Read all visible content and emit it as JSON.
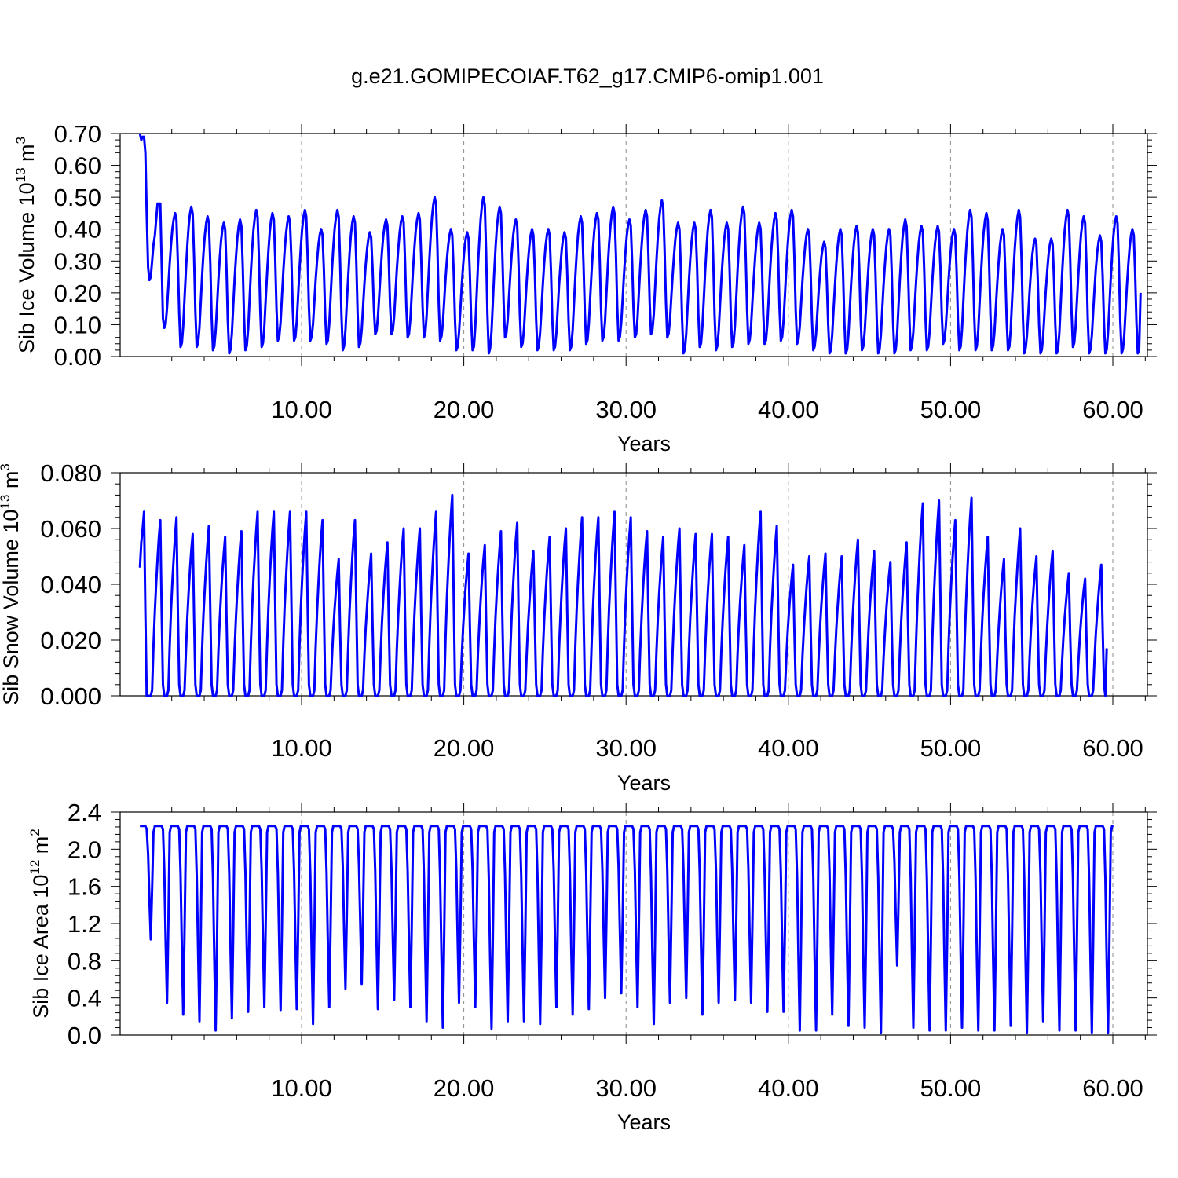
{
  "title": "g.e21.GOMIPECOIAF.T62_g17.CMIP6-omip1.001",
  "colors": {
    "series": "#0000ff",
    "axis": "#000000",
    "grid": "#8c8c8c"
  },
  "chart_data": [
    {
      "type": "line",
      "name": "ice-volume",
      "ylabel": {
        "main": "Sib Ice Volume 10",
        "sup": "13",
        "unit": " m",
        "unit_sup": "3"
      },
      "xlabel": "Years",
      "xlim": [
        0,
        62.0
      ],
      "ylim": [
        0,
        0.7
      ],
      "xticks": [
        10,
        20,
        30,
        40,
        50,
        60
      ],
      "xtick_labels": [
        "10.00",
        "20.00",
        "30.00",
        "40.00",
        "50.00",
        "60.00"
      ],
      "yticks": [
        0,
        0.1,
        0.2,
        0.3,
        0.4,
        0.5,
        0.6,
        0.7
      ],
      "ytick_labels": [
        "0.00",
        "0.10",
        "0.20",
        "0.30",
        "0.40",
        "0.50",
        "0.60",
        "0.70"
      ],
      "grid": "vertical-dashed",
      "series": [
        {
          "color": "#0000ff",
          "start_x": 0.04,
          "step": 0.08333333,
          "initial": [
            0.7,
            0.68,
            0.69,
            0.69,
            0.64,
            0.45,
            0.28,
            0.24,
            0.25,
            0.3,
            0.35,
            0.38,
            0.43,
            0.48,
            0.48,
            0.48,
            0.3,
            0.12,
            0.09,
            0.1
          ],
          "peaks": [
            0.45,
            0.47,
            0.44,
            0.42,
            0.43,
            0.46,
            0.45,
            0.44,
            0.46,
            0.4,
            0.46,
            0.44,
            0.39,
            0.43,
            0.44,
            0.45,
            0.5,
            0.4,
            0.39,
            0.5,
            0.47,
            0.43,
            0.4,
            0.4,
            0.39,
            0.44,
            0.45,
            0.47,
            0.43,
            0.46,
            0.49,
            0.42,
            0.42,
            0.46,
            0.42,
            0.47,
            0.42,
            0.45,
            0.46,
            0.4,
            0.36,
            0.4,
            0.41,
            0.4,
            0.4,
            0.43,
            0.41,
            0.41,
            0.4,
            0.46,
            0.45,
            0.4,
            0.46,
            0.37,
            0.37,
            0.46,
            0.44,
            0.38,
            0.44,
            0.4
          ],
          "troughs": [
            0.03,
            0.03,
            0.02,
            0.01,
            0.02,
            0.03,
            0.05,
            0.05,
            0.05,
            0.04,
            0.02,
            0.03,
            0.07,
            0.07,
            0.06,
            0.06,
            0.05,
            0.02,
            0.02,
            0.01,
            0.06,
            0.03,
            0.02,
            0.02,
            0.02,
            0.04,
            0.05,
            0.05,
            0.06,
            0.07,
            0.06,
            0.01,
            0.03,
            0.02,
            0.03,
            0.04,
            0.04,
            0.05,
            0.04,
            0.02,
            0.01,
            0.01,
            0.02,
            0.01,
            0.01,
            0.02,
            0.02,
            0.04,
            0.02,
            0.02,
            0.02,
            0.02,
            0.01,
            0.01,
            0.01,
            0.03,
            0.01,
            0.01,
            0.01,
            0.01
          ],
          "last": 0.2
        }
      ]
    },
    {
      "type": "line",
      "name": "snow-volume",
      "ylabel": {
        "main": "Sib Snow Volume 10",
        "sup": "13",
        "unit": " m",
        "unit_sup": "3"
      },
      "xlabel": "Years",
      "xlim": [
        0,
        62.0
      ],
      "ylim": [
        0,
        0.08
      ],
      "xticks": [
        10,
        20,
        30,
        40,
        50,
        60
      ],
      "xtick_labels": [
        "10.00",
        "20.00",
        "30.00",
        "40.00",
        "50.00",
        "60.00"
      ],
      "yticks": [
        0,
        0.02,
        0.04,
        0.06,
        0.08
      ],
      "ytick_labels": [
        "0.000",
        "0.020",
        "0.040",
        "0.060",
        "0.080"
      ],
      "grid": "vertical-dashed",
      "series": [
        {
          "color": "#0000ff",
          "start_x": 0.04,
          "step": 0.08333333,
          "first": 0.046,
          "peaks": [
            0.066,
            0.063,
            0.064,
            0.058,
            0.061,
            0.057,
            0.059,
            0.066,
            0.066,
            0.066,
            0.066,
            0.063,
            0.049,
            0.063,
            0.051,
            0.055,
            0.06,
            0.06,
            0.066,
            0.072,
            0.051,
            0.054,
            0.059,
            0.062,
            0.052,
            0.057,
            0.06,
            0.064,
            0.064,
            0.066,
            0.064,
            0.059,
            0.057,
            0.06,
            0.058,
            0.058,
            0.057,
            0.054,
            0.066,
            0.061,
            0.047,
            0.05,
            0.051,
            0.05,
            0.056,
            0.052,
            0.048,
            0.055,
            0.069,
            0.07,
            0.063,
            0.071,
            0.057,
            0.049,
            0.06,
            0.05,
            0.052,
            0.044,
            0.042,
            0.047
          ],
          "last": 0.017
        }
      ]
    },
    {
      "type": "line",
      "name": "ice-area",
      "ylabel": {
        "main": "Sib Ice Area 10",
        "sup": "12",
        "unit": " m",
        "unit_sup": "2"
      },
      "xlabel": "Years",
      "xlim": [
        0,
        62.0
      ],
      "ylim": [
        0,
        2.4
      ],
      "xticks": [
        10,
        20,
        30,
        40,
        50,
        60
      ],
      "xtick_labels": [
        "10.00",
        "20.00",
        "30.00",
        "40.00",
        "50.00",
        "60.00"
      ],
      "yticks": [
        0,
        0.4,
        0.8,
        1.2,
        1.6,
        2.0,
        2.4
      ],
      "ytick_labels": [
        "0.0",
        "0.4",
        "0.8",
        "1.2",
        "1.6",
        "2.0",
        "2.4"
      ],
      "grid": "vertical-dashed",
      "series": [
        {
          "color": "#0000ff",
          "start_x": 0.04,
          "step": 0.08333333,
          "plateau": 2.25,
          "minima": [
            1.03,
            0.35,
            0.22,
            0.15,
            0.05,
            0.18,
            0.25,
            0.3,
            0.27,
            0.28,
            0.12,
            0.3,
            0.5,
            0.55,
            0.28,
            0.38,
            0.3,
            0.15,
            0.08,
            0.35,
            0.3,
            0.07,
            0.15,
            0.15,
            0.12,
            0.3,
            0.22,
            0.28,
            0.4,
            0.45,
            0.3,
            0.12,
            0.35,
            0.4,
            0.22,
            0.35,
            0.38,
            0.35,
            0.25,
            0.25,
            0.05,
            0.05,
            0.22,
            0.1,
            0.08,
            0.02,
            0.75,
            0.08,
            0.05,
            0.05,
            0.08,
            0.05,
            0.05,
            0.1,
            0.02,
            0.15,
            0.05,
            0.05,
            0.02,
            0.02
          ],
          "last": 2.25
        }
      ]
    }
  ]
}
